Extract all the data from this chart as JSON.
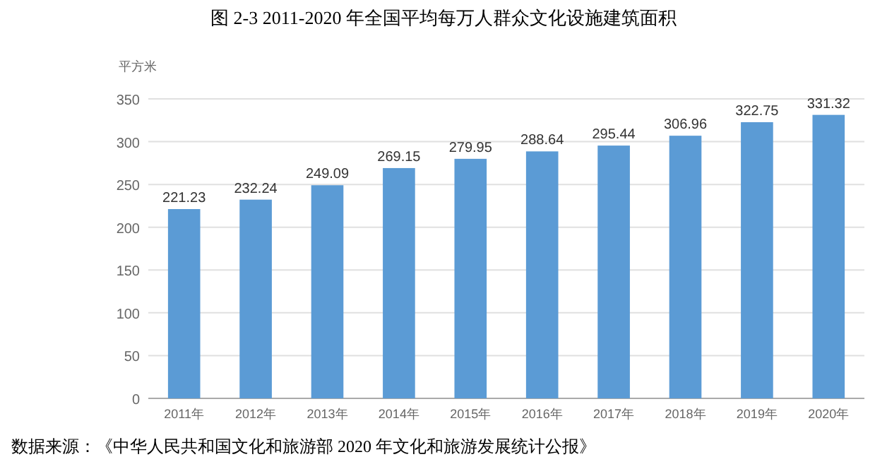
{
  "chart_data": {
    "type": "bar",
    "title": "图 2-3    2011-2020 年全国平均每万人群众文化设施建筑面积",
    "ylabel": "平方米",
    "categories": [
      "2011年",
      "2012年",
      "2013年",
      "2014年",
      "2015年",
      "2016年",
      "2017年",
      "2018年",
      "2019年",
      "2020年"
    ],
    "values": [
      221.23,
      232.24,
      249.09,
      269.15,
      279.95,
      288.64,
      295.44,
      306.96,
      322.75,
      331.32
    ],
    "color": "#5b9bd5",
    "ylim": [
      0,
      350
    ],
    "yticks": [
      0,
      50,
      100,
      150,
      200,
      250,
      300,
      350
    ],
    "grid": "y",
    "data_labels": true,
    "annotations": [
      "数据来源：《中华人民共和国文化和旅游部 2020 年文化和旅游发展统计公报》"
    ]
  }
}
